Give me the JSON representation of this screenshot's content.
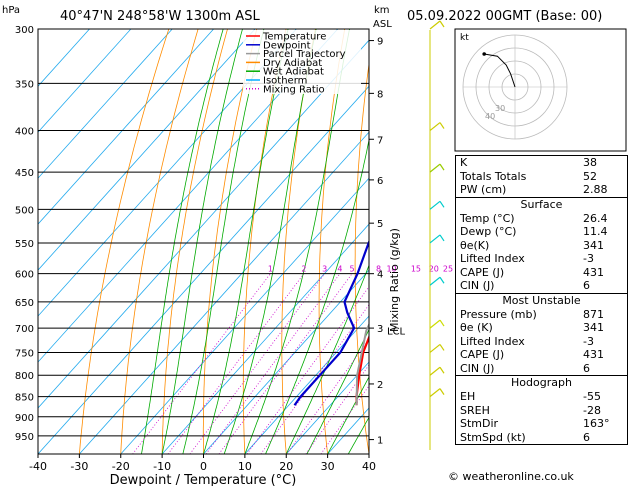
{
  "header": {
    "location": "40°47'N  248°58'W  1300m  ASL",
    "datetime": "05.09.2022  00GMT  (Base: 00)",
    "hpa_label": "hPa",
    "km_label": "km",
    "asl_label": "ASL"
  },
  "legend": [
    {
      "label": "Temperature",
      "color": "#ff0000",
      "dash": ""
    },
    {
      "label": "Dewpoint",
      "color": "#0000cc",
      "dash": ""
    },
    {
      "label": "Parcel Trajectory",
      "color": "#999999",
      "dash": ""
    },
    {
      "label": "Dry Adiabat",
      "color": "#ff8c00",
      "dash": ""
    },
    {
      "label": "Wet Adiabat",
      "color": "#00aa00",
      "dash": ""
    },
    {
      "label": "Isotherm",
      "color": "#00aaff",
      "dash": ""
    },
    {
      "label": "Mixing Ratio",
      "color": "#cc00cc",
      "dash": "1,2"
    }
  ],
  "chart_data": {
    "type": "line",
    "xlabel": "Dewpoint / Temperature (°C)",
    "ylabel": "hPa",
    "y2label": "Mixing Ratio (g/kg)",
    "xlim": [
      -40,
      40
    ],
    "ylim": [
      1000,
      300
    ],
    "y_log": true,
    "x_ticks": [
      -40,
      -30,
      -20,
      -10,
      0,
      10,
      20,
      30,
      40
    ],
    "pressure_ticks": [
      300,
      350,
      400,
      450,
      500,
      550,
      600,
      650,
      700,
      750,
      800,
      850,
      900,
      950
    ],
    "km_ticks": [
      {
        "p": 960,
        "label": "1"
      },
      {
        "p": 820,
        "label": "2"
      },
      {
        "p": 700,
        "label": "3"
      },
      {
        "p": 600,
        "label": "4"
      },
      {
        "p": 520,
        "label": "5"
      },
      {
        "p": 460,
        "label": "6"
      },
      {
        "p": 410,
        "label": "7"
      },
      {
        "p": 360,
        "label": "8"
      },
      {
        "p": 310,
        "label": "9"
      }
    ],
    "lcl_label": "LCL",
    "lcl_p": 705,
    "mixing_ratio_labels": [
      "1",
      "2",
      "3",
      "4",
      "5",
      "8",
      "10",
      "15",
      "20",
      "25"
    ],
    "mixing_ratio_label_p": 600,
    "series": [
      {
        "name": "Temperature",
        "color": "#ff0000",
        "points": [
          [
            871,
            26.4
          ],
          [
            850,
            24.5
          ],
          [
            800,
            20.5
          ],
          [
            750,
            16.5
          ],
          [
            700,
            13.5
          ],
          [
            650,
            9.0
          ],
          [
            600,
            5.0
          ],
          [
            550,
            0.0
          ],
          [
            500,
            -4.8
          ],
          [
            450,
            -9.5
          ],
          [
            400,
            -16.0
          ],
          [
            350,
            -23.0
          ],
          [
            300,
            -31.0
          ]
        ]
      },
      {
        "name": "Dewpoint",
        "color": "#0000cc",
        "points": [
          [
            871,
            11.4
          ],
          [
            850,
            11.0
          ],
          [
            800,
            11.0
          ],
          [
            750,
            11.0
          ],
          [
            700,
            9.0
          ],
          [
            670,
            4.0
          ],
          [
            650,
            1.0
          ],
          [
            600,
            -2.0
          ],
          [
            550,
            -6.0
          ],
          [
            520,
            -8.0
          ],
          [
            500,
            -12.0
          ],
          [
            490,
            -13.0
          ],
          [
            450,
            -14.0
          ],
          [
            400,
            -21.0
          ],
          [
            350,
            -28.5
          ],
          [
            300,
            -35.0
          ]
        ]
      },
      {
        "name": "Parcel Trajectory",
        "color": "#999999",
        "points": [
          [
            871,
            26.4
          ],
          [
            800,
            20.0
          ],
          [
            705,
            12.5
          ],
          [
            650,
            9.5
          ],
          [
            600,
            6.5
          ],
          [
            550,
            3.0
          ],
          [
            500,
            -1.5
          ],
          [
            450,
            -6.5
          ],
          [
            400,
            -12.5
          ],
          [
            350,
            -19.5
          ],
          [
            300,
            -27.5
          ]
        ]
      }
    ],
    "dry_adiabats_theta": [
      -30,
      -20,
      -10,
      0,
      10,
      20,
      30,
      40,
      50,
      60,
      70,
      80,
      90,
      100,
      110,
      120,
      130
    ],
    "wet_adiabats_t1000": [
      -15,
      -10,
      -5,
      0,
      5,
      10,
      15,
      20,
      25,
      30,
      35
    ],
    "isotherms": [
      -120,
      -110,
      -100,
      -90,
      -80,
      -70,
      -60,
      -50,
      -40,
      -30,
      -20,
      -10,
      0,
      10,
      20,
      30,
      40
    ],
    "mixing_ratios": [
      1,
      2,
      3,
      4,
      5,
      8,
      10,
      15,
      20,
      25
    ],
    "wind_barbs": [
      {
        "p": 300,
        "color": "#cccc00"
      },
      {
        "p": 400,
        "color": "#cccc00"
      },
      {
        "p": 450,
        "color": "#99cc00"
      },
      {
        "p": 500,
        "color": "#00cccc"
      },
      {
        "p": 550,
        "color": "#00cccc"
      },
      {
        "p": 620,
        "color": "#00cccc"
      },
      {
        "p": 700,
        "color": "#ccdd00"
      },
      {
        "p": 750,
        "color": "#cccc00"
      },
      {
        "p": 800,
        "color": "#cccc00"
      },
      {
        "p": 850,
        "color": "#cccc00"
      }
    ]
  },
  "hodograph": {
    "unit": "kt",
    "ring_labels": [
      "30",
      "40"
    ],
    "trace": [
      [
        0,
        0
      ],
      [
        -1,
        3
      ],
      [
        -2,
        6
      ],
      [
        -4,
        10
      ],
      [
        -8,
        14
      ],
      [
        -14,
        15
      ]
    ]
  },
  "indices": {
    "rows": [
      {
        "label": "K",
        "value": "38"
      },
      {
        "label": "Totals Totals",
        "value": "52"
      },
      {
        "label": "PW (cm)",
        "value": "2.88"
      }
    ],
    "surface": {
      "title": "Surface",
      "rows": [
        {
          "label": "Temp (°C)",
          "value": "26.4"
        },
        {
          "label": "Dewp (°C)",
          "value": "11.4"
        },
        {
          "label": "θe(K)",
          "value": "341"
        },
        {
          "label": "Lifted Index",
          "value": "-3"
        },
        {
          "label": "CAPE (J)",
          "value": "431"
        },
        {
          "label": "CIN (J)",
          "value": "6"
        }
      ]
    },
    "most_unstable": {
      "title": "Most Unstable",
      "rows": [
        {
          "label": "Pressure (mb)",
          "value": "871"
        },
        {
          "label": "θe (K)",
          "value": "341"
        },
        {
          "label": "Lifted Index",
          "value": "-3"
        },
        {
          "label": "CAPE (J)",
          "value": "431"
        },
        {
          "label": "CIN (J)",
          "value": "6"
        }
      ]
    },
    "hodograph_table": {
      "title": "Hodograph",
      "rows": [
        {
          "label": "EH",
          "value": "-55"
        },
        {
          "label": "SREH",
          "value": "-28"
        },
        {
          "label": "StmDir",
          "value": "163°"
        },
        {
          "label": "StmSpd (kt)",
          "value": "6"
        }
      ]
    }
  },
  "footer": "© weatheronline.co.uk"
}
